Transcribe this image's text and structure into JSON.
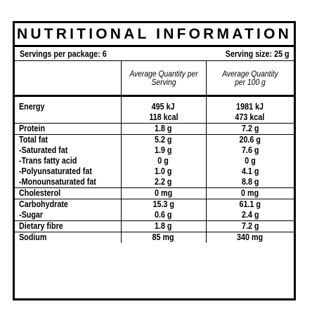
{
  "title": "NUTRITIONAL INFORMATION",
  "servings_per_package": "Servings per package: 6",
  "serving_size": "Serving size: 25 g",
  "headers": {
    "per_serving": "Average Quantity per Serving",
    "per_100g": "Average Quantity per 100 g"
  },
  "rows": {
    "energy": {
      "label": "Energy",
      "serving_kj": "495 kJ",
      "serving_kcal": "118 kcal",
      "per100_kj": "1981 kJ",
      "per100_kcal": "473 kcal"
    },
    "protein": {
      "label": "Protein",
      "serving": "1.8 g",
      "per100": "7.2 g"
    },
    "total_fat": {
      "label": "Total fat",
      "serving": "5.2 g",
      "per100": "20.6 g"
    },
    "saturated_fat": {
      "label": "-Saturated fat",
      "serving": "1.9 g",
      "per100": "7.6 g"
    },
    "trans_fat": {
      "label": "-Trans fatty acid",
      "serving": "0 g",
      "per100": "0 g"
    },
    "poly_fat": {
      "label": "-Polyunsaturated fat",
      "serving": "1.0 g",
      "per100": "4.1 g"
    },
    "mono_fat": {
      "label": "-Monounsaturated fat",
      "serving": "2.2 g",
      "per100": "8.8 g"
    },
    "cholesterol": {
      "label": "Cholesterol",
      "serving": "0 mg",
      "per100": "0 mg"
    },
    "carbohydrate": {
      "label": "Carbohydrate",
      "serving": "15.3 g",
      "per100": "61.1 g"
    },
    "sugar": {
      "label": "-Sugar",
      "serving": "0.6 g",
      "per100": "2.4 g"
    },
    "fibre": {
      "label": "Dietary fibre",
      "serving": "1.8 g",
      "per100": "7.2 g"
    },
    "sodium": {
      "label": "Sodium",
      "serving": "85 mg",
      "per100": "340 mg"
    }
  }
}
